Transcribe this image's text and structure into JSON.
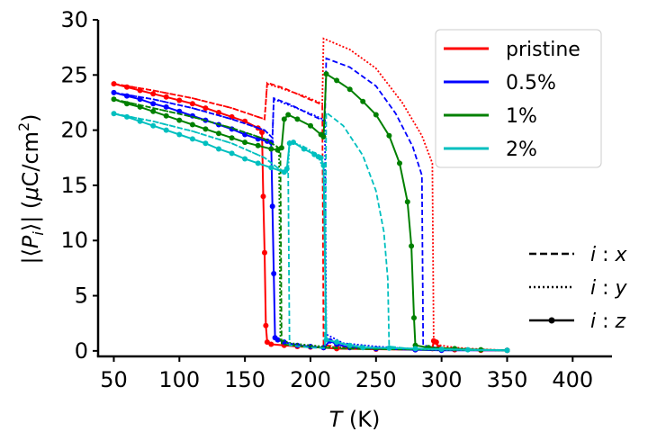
{
  "chart_data": {
    "type": "line",
    "title": "",
    "xlabel": "T (K)",
    "xlabel_var": "T",
    "xlabel_unit": " (K)",
    "ylabel": "|⟨P_i⟩| (μC/cm²)",
    "ylabel_parts": {
      "prefix": "|⟨",
      "var": "P",
      "sub": "i",
      "mid": "⟩| (",
      "mu": "μ",
      "unit": "C/cm",
      "sup": "2",
      "suffix": ")"
    },
    "xlim": [
      38,
      430
    ],
    "ylim": [
      -0.5,
      30
    ],
    "xticks": [
      50,
      100,
      150,
      200,
      250,
      300,
      350,
      400
    ],
    "yticks": [
      0,
      5,
      10,
      15,
      20,
      25,
      30
    ],
    "grid": false,
    "legend_placement": "top-right",
    "series": [
      {
        "name": "pristine",
        "color": "#ff0000",
        "component_x": [
          [
            50,
            24.2
          ],
          [
            80,
            23.6
          ],
          [
            110,
            22.9
          ],
          [
            140,
            22.0
          ],
          [
            165,
            21.0
          ],
          [
            167,
            24.3
          ],
          [
            180,
            23.8
          ],
          [
            195,
            23.0
          ],
          [
            209,
            22.3
          ],
          [
            210,
            0.5
          ],
          [
            225,
            0.35
          ],
          [
            250,
            0.25
          ],
          [
            275,
            0.2
          ],
          [
            300,
            0.15
          ],
          [
            325,
            0.1
          ],
          [
            350,
            0.05
          ]
        ],
        "component_y": [
          [
            50,
            24.2
          ],
          [
            80,
            23.6
          ],
          [
            110,
            22.9
          ],
          [
            140,
            22.0
          ],
          [
            165,
            21.0
          ],
          [
            167,
            24.2
          ],
          [
            180,
            23.7
          ],
          [
            195,
            23.1
          ],
          [
            209,
            22.4
          ],
          [
            210,
            28.3
          ],
          [
            230,
            27.3
          ],
          [
            250,
            25.6
          ],
          [
            270,
            22.5
          ],
          [
            285,
            19.5
          ],
          [
            293,
            17.0
          ],
          [
            294,
            0.6
          ],
          [
            310,
            0.3
          ],
          [
            330,
            0.15
          ],
          [
            350,
            0.05
          ]
        ],
        "component_z": [
          [
            50,
            24.2
          ],
          [
            60,
            23.9
          ],
          [
            70,
            23.6
          ],
          [
            80,
            23.3
          ],
          [
            90,
            23.0
          ],
          [
            100,
            22.7
          ],
          [
            110,
            22.4
          ],
          [
            120,
            22.0
          ],
          [
            130,
            21.6
          ],
          [
            140,
            21.2
          ],
          [
            150,
            20.8
          ],
          [
            160,
            20.2
          ],
          [
            163,
            19.8
          ],
          [
            164,
            14.0
          ],
          [
            165,
            8.9
          ],
          [
            166,
            2.3
          ],
          [
            167,
            0.8
          ],
          [
            170,
            0.6
          ],
          [
            180,
            0.5
          ],
          [
            190,
            0.4
          ],
          [
            200,
            0.35
          ],
          [
            210,
            0.3
          ],
          [
            220,
            0.2
          ],
          [
            250,
            0.15
          ],
          [
            280,
            0.1
          ],
          [
            293,
            0.2
          ],
          [
            294,
            0.9
          ],
          [
            296,
            0.8
          ],
          [
            298,
            0.3
          ],
          [
            310,
            0.1
          ],
          [
            330,
            0.05
          ],
          [
            350,
            0.05
          ]
        ]
      },
      {
        "name": "0.5%",
        "color": "#0000ff",
        "component_x": [
          [
            50,
            23.4
          ],
          [
            80,
            22.8
          ],
          [
            110,
            22.0
          ],
          [
            140,
            21.0
          ],
          [
            165,
            20.0
          ],
          [
            171,
            19.3
          ],
          [
            172,
            22.9
          ],
          [
            185,
            22.3
          ],
          [
            200,
            21.4
          ],
          [
            211,
            20.8
          ],
          [
            212,
            26.5
          ],
          [
            230,
            25.7
          ],
          [
            250,
            24.0
          ],
          [
            265,
            21.5
          ],
          [
            278,
            18.5
          ],
          [
            285,
            15.9
          ],
          [
            286,
            0.5
          ],
          [
            300,
            0.2
          ],
          [
            325,
            0.1
          ],
          [
            350,
            0.05
          ]
        ],
        "component_y": [
          [
            50,
            23.4
          ],
          [
            80,
            22.8
          ],
          [
            110,
            22.0
          ],
          [
            140,
            21.0
          ],
          [
            165,
            20.0
          ],
          [
            171,
            19.3
          ],
          [
            172,
            22.8
          ],
          [
            185,
            22.2
          ],
          [
            200,
            21.5
          ],
          [
            211,
            20.9
          ],
          [
            212,
            1.5
          ],
          [
            225,
            0.7
          ],
          [
            250,
            0.4
          ],
          [
            275,
            0.2
          ],
          [
            300,
            0.15
          ],
          [
            350,
            0.05
          ]
        ],
        "component_z": [
          [
            50,
            23.4
          ],
          [
            60,
            23.1
          ],
          [
            70,
            22.8
          ],
          [
            80,
            22.4
          ],
          [
            90,
            22.1
          ],
          [
            100,
            21.7
          ],
          [
            110,
            21.3
          ],
          [
            120,
            20.9
          ],
          [
            130,
            20.5
          ],
          [
            140,
            20.1
          ],
          [
            150,
            19.6
          ],
          [
            160,
            19.2
          ],
          [
            167,
            19.0
          ],
          [
            170,
            18.9
          ],
          [
            171,
            13.1
          ],
          [
            172,
            7.0
          ],
          [
            173,
            1.2
          ],
          [
            175,
            1.0
          ],
          [
            180,
            0.8
          ],
          [
            190,
            0.5
          ],
          [
            200,
            0.4
          ],
          [
            210,
            0.3
          ],
          [
            215,
            0.9
          ],
          [
            220,
            0.6
          ],
          [
            230,
            0.3
          ],
          [
            250,
            0.2
          ],
          [
            280,
            0.1
          ],
          [
            300,
            0.05
          ],
          [
            350,
            0.05
          ]
        ]
      },
      {
        "name": "1%",
        "color": "#008000",
        "component_x": [
          [
            50,
            22.8
          ],
          [
            80,
            22.0
          ],
          [
            110,
            21.2
          ],
          [
            140,
            20.2
          ],
          [
            165,
            19.2
          ],
          [
            177,
            18.3
          ],
          [
            178,
            0.6
          ],
          [
            195,
            0.4
          ],
          [
            210,
            0.3
          ],
          [
            225,
            0.2
          ],
          [
            250,
            0.15
          ],
          [
            300,
            0.1
          ],
          [
            350,
            0.05
          ]
        ],
        "component_y": [
          [
            50,
            22.8
          ],
          [
            80,
            22.0
          ],
          [
            110,
            21.2
          ],
          [
            140,
            20.2
          ],
          [
            165,
            19.2
          ],
          [
            176,
            18.4
          ],
          [
            177,
            1.0
          ],
          [
            185,
            0.7
          ],
          [
            200,
            0.5
          ],
          [
            210,
            0.4
          ],
          [
            225,
            0.3
          ],
          [
            250,
            0.2
          ],
          [
            300,
            0.1
          ],
          [
            350,
            0.05
          ]
        ],
        "component_z": [
          [
            50,
            22.8
          ],
          [
            60,
            22.4
          ],
          [
            70,
            22.1
          ],
          [
            80,
            21.7
          ],
          [
            90,
            21.3
          ],
          [
            100,
            20.9
          ],
          [
            110,
            20.5
          ],
          [
            120,
            20.1
          ],
          [
            130,
            19.7
          ],
          [
            140,
            19.3
          ],
          [
            150,
            18.9
          ],
          [
            160,
            18.6
          ],
          [
            170,
            18.3
          ],
          [
            175,
            18.2
          ],
          [
            178,
            18.4
          ],
          [
            180,
            21.0
          ],
          [
            183,
            21.4
          ],
          [
            190,
            21.0
          ],
          [
            200,
            20.4
          ],
          [
            208,
            19.6
          ],
          [
            210,
            19.4
          ],
          [
            212,
            25.1
          ],
          [
            220,
            24.5
          ],
          [
            230,
            23.7
          ],
          [
            240,
            22.6
          ],
          [
            250,
            21.4
          ],
          [
            260,
            19.5
          ],
          [
            268,
            17.0
          ],
          [
            274,
            13.5
          ],
          [
            277,
            9.5
          ],
          [
            279,
            3.0
          ],
          [
            280,
            0.5
          ],
          [
            290,
            0.3
          ],
          [
            310,
            0.2
          ],
          [
            330,
            0.1
          ],
          [
            350,
            0.05
          ]
        ]
      },
      {
        "name": "2%",
        "color": "#00bfbf",
        "component_x": [
          [
            50,
            21.5
          ],
          [
            80,
            20.8
          ],
          [
            110,
            19.9
          ],
          [
            140,
            18.8
          ],
          [
            165,
            17.5
          ],
          [
            177,
            16.4
          ],
          [
            183,
            16.2
          ],
          [
            184,
            0.5
          ],
          [
            200,
            0.3
          ],
          [
            211,
            0.25
          ],
          [
            212,
            21.6
          ],
          [
            225,
            20.4
          ],
          [
            240,
            17.7
          ],
          [
            250,
            14.5
          ],
          [
            256,
            10.8
          ],
          [
            259,
            6.5
          ],
          [
            260,
            0.4
          ],
          [
            275,
            0.2
          ],
          [
            300,
            0.15
          ],
          [
            350,
            0.05
          ]
        ],
        "component_y": [
          [
            50,
            21.5
          ],
          [
            80,
            20.8
          ],
          [
            110,
            19.9
          ],
          [
            140,
            18.8
          ],
          [
            165,
            17.5
          ],
          [
            177,
            16.4
          ],
          [
            183,
            16.2
          ],
          [
            184,
            19.0
          ],
          [
            195,
            18.5
          ],
          [
            205,
            17.8
          ],
          [
            210,
            16.5
          ],
          [
            212,
            1.0
          ],
          [
            225,
            0.6
          ],
          [
            250,
            0.3
          ],
          [
            275,
            0.2
          ],
          [
            300,
            0.1
          ],
          [
            350,
            0.05
          ]
        ],
        "component_z": [
          [
            50,
            21.5
          ],
          [
            60,
            21.2
          ],
          [
            70,
            20.8
          ],
          [
            80,
            20.4
          ],
          [
            90,
            20.0
          ],
          [
            100,
            19.6
          ],
          [
            110,
            19.2
          ],
          [
            120,
            18.8
          ],
          [
            130,
            18.3
          ],
          [
            140,
            17.9
          ],
          [
            150,
            17.4
          ],
          [
            160,
            17.0
          ],
          [
            170,
            16.6
          ],
          [
            180,
            16.2
          ],
          [
            182,
            16.5
          ],
          [
            184,
            18.8
          ],
          [
            187,
            18.9
          ],
          [
            195,
            18.3
          ],
          [
            203,
            17.8
          ],
          [
            206,
            17.6
          ],
          [
            208,
            17.5
          ],
          [
            210,
            16.8
          ],
          [
            212,
            1.0
          ],
          [
            220,
            0.8
          ],
          [
            230,
            0.5
          ],
          [
            240,
            0.3
          ],
          [
            260,
            0.25
          ],
          [
            280,
            0.2
          ],
          [
            300,
            0.15
          ],
          [
            320,
            0.1
          ],
          [
            350,
            0.05
          ]
        ]
      }
    ],
    "component_legend": [
      {
        "style": "dashed",
        "label_var": "i",
        "label_sep": " : ",
        "label_comp": "x"
      },
      {
        "style": "dotted",
        "label_var": "i",
        "label_sep": " : ",
        "label_comp": "y"
      },
      {
        "style": "solid-marker",
        "label_var": "i",
        "label_sep": " : ",
        "label_comp": "z"
      }
    ]
  }
}
